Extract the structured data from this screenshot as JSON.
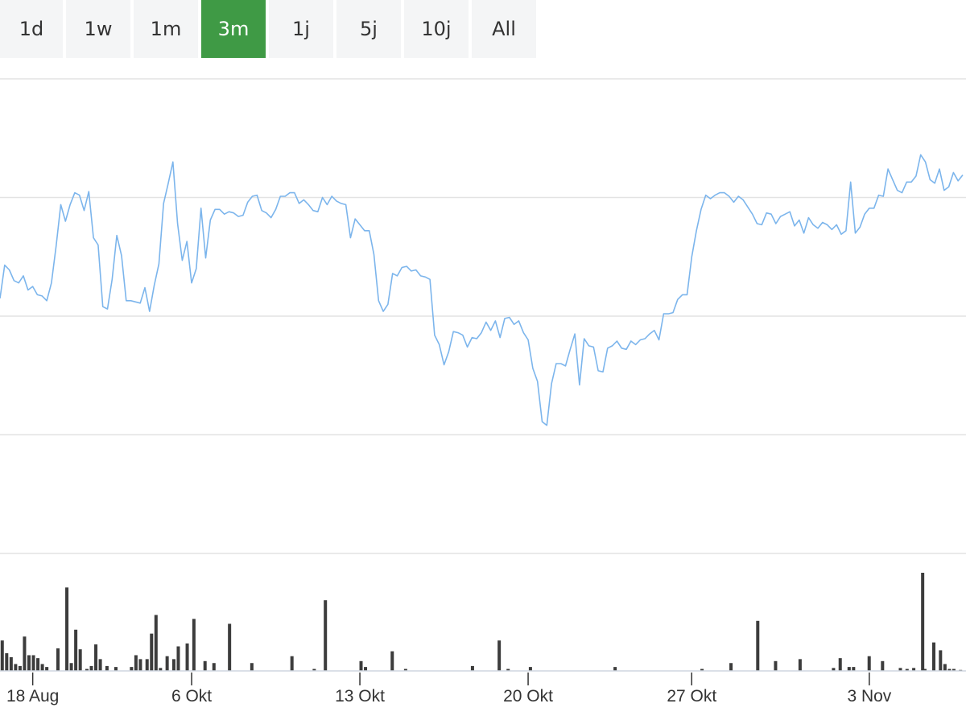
{
  "range_selector": {
    "buttons": [
      {
        "label": "1d"
      },
      {
        "label": "1w"
      },
      {
        "label": "1m"
      },
      {
        "label": "3m"
      },
      {
        "label": "1j"
      },
      {
        "label": "5j"
      },
      {
        "label": "10j"
      },
      {
        "label": "All"
      }
    ],
    "active": "3m",
    "active_color": "#3f9a45"
  },
  "chart_data": {
    "type": "line",
    "price_color": "#7cb5ec",
    "volume_color": "#3c3c3c",
    "y_ticks": [
      0,
      1,
      2,
      3,
      4
    ],
    "ylim": [
      0,
      4
    ],
    "volume_ylim": [
      0,
      1
    ],
    "x_ticks": [
      {
        "label": "18 Aug",
        "x": 1.4
      },
      {
        "label": "6 Okt",
        "x": 8.2
      },
      {
        "label": "13 Okt",
        "x": 15.4
      },
      {
        "label": "20 Okt",
        "x": 22.6
      },
      {
        "label": "27 Okt",
        "x": 29.6
      },
      {
        "label": "3 Nov",
        "x": 37.2
      }
    ],
    "xlim": [
      0,
      41.2
    ],
    "price": [
      [
        0,
        2.15
      ],
      [
        0.2,
        2.43
      ],
      [
        0.4,
        2.39
      ],
      [
        0.6,
        2.3
      ],
      [
        0.8,
        2.28
      ],
      [
        1.0,
        2.34
      ],
      [
        1.2,
        2.22
      ],
      [
        1.4,
        2.25
      ],
      [
        1.6,
        2.18
      ],
      [
        1.8,
        2.17
      ],
      [
        2.0,
        2.13
      ],
      [
        2.2,
        2.28
      ],
      [
        2.4,
        2.59
      ],
      [
        2.6,
        2.94
      ],
      [
        2.8,
        2.8
      ],
      [
        3.0,
        2.94
      ],
      [
        3.2,
        3.04
      ],
      [
        3.4,
        3.02
      ],
      [
        3.6,
        2.89
      ],
      [
        3.8,
        3.05
      ],
      [
        4.0,
        2.66
      ],
      [
        4.2,
        2.6
      ],
      [
        4.4,
        2.08
      ],
      [
        4.6,
        2.06
      ],
      [
        4.8,
        2.31
      ],
      [
        5.0,
        2.68
      ],
      [
        5.2,
        2.51
      ],
      [
        5.4,
        2.13
      ],
      [
        5.6,
        2.13
      ],
      [
        5.8,
        2.12
      ],
      [
        6.0,
        2.11
      ],
      [
        6.2,
        2.24
      ],
      [
        6.4,
        2.04
      ],
      [
        6.6,
        2.26
      ],
      [
        6.8,
        2.44
      ],
      [
        7.0,
        2.95
      ],
      [
        7.2,
        3.12
      ],
      [
        7.4,
        3.3
      ],
      [
        7.6,
        2.78
      ],
      [
        7.8,
        2.47
      ],
      [
        8.0,
        2.63
      ],
      [
        8.2,
        2.28
      ],
      [
        8.4,
        2.4
      ],
      [
        8.6,
        2.91
      ],
      [
        8.8,
        2.49
      ],
      [
        9.0,
        2.81
      ],
      [
        9.2,
        2.9
      ],
      [
        9.4,
        2.9
      ],
      [
        9.6,
        2.86
      ],
      [
        9.8,
        2.88
      ],
      [
        10.0,
        2.87
      ],
      [
        10.2,
        2.84
      ],
      [
        10.4,
        2.85
      ],
      [
        10.6,
        2.96
      ],
      [
        10.8,
        3.01
      ],
      [
        11.0,
        3.02
      ],
      [
        11.2,
        2.89
      ],
      [
        11.4,
        2.87
      ],
      [
        11.6,
        2.83
      ],
      [
        11.8,
        2.9
      ],
      [
        12.0,
        3.01
      ],
      [
        12.2,
        3.01
      ],
      [
        12.4,
        3.04
      ],
      [
        12.6,
        3.04
      ],
      [
        12.8,
        2.95
      ],
      [
        13.0,
        2.98
      ],
      [
        13.2,
        2.94
      ],
      [
        13.4,
        2.89
      ],
      [
        13.6,
        2.88
      ],
      [
        13.8,
        3.0
      ],
      [
        14.0,
        2.94
      ],
      [
        14.2,
        3.01
      ],
      [
        14.4,
        2.97
      ],
      [
        14.6,
        2.95
      ],
      [
        14.8,
        2.94
      ],
      [
        15.0,
        2.66
      ],
      [
        15.2,
        2.82
      ],
      [
        15.4,
        2.77
      ],
      [
        15.6,
        2.72
      ],
      [
        15.8,
        2.72
      ],
      [
        16.0,
        2.52
      ],
      [
        16.2,
        2.13
      ],
      [
        16.4,
        2.04
      ],
      [
        16.6,
        2.1
      ],
      [
        16.8,
        2.36
      ],
      [
        17.0,
        2.34
      ],
      [
        17.2,
        2.41
      ],
      [
        17.4,
        2.42
      ],
      [
        17.6,
        2.38
      ],
      [
        17.8,
        2.39
      ],
      [
        18.0,
        2.34
      ],
      [
        18.2,
        2.33
      ],
      [
        18.4,
        2.31
      ],
      [
        18.6,
        1.84
      ],
      [
        18.8,
        1.76
      ],
      [
        19.0,
        1.59
      ],
      [
        19.2,
        1.7
      ],
      [
        19.4,
        1.87
      ],
      [
        19.6,
        1.86
      ],
      [
        19.8,
        1.84
      ],
      [
        20.0,
        1.74
      ],
      [
        20.2,
        1.82
      ],
      [
        20.4,
        1.81
      ],
      [
        20.6,
        1.86
      ],
      [
        20.8,
        1.95
      ],
      [
        21.0,
        1.88
      ],
      [
        21.2,
        1.96
      ],
      [
        21.4,
        1.82
      ],
      [
        21.6,
        1.98
      ],
      [
        21.8,
        1.99
      ],
      [
        22.0,
        1.93
      ],
      [
        22.2,
        1.96
      ],
      [
        22.4,
        1.86
      ],
      [
        22.6,
        1.8
      ],
      [
        22.8,
        1.56
      ],
      [
        23.0,
        1.45
      ],
      [
        23.2,
        1.11
      ],
      [
        23.4,
        1.08
      ],
      [
        23.6,
        1.43
      ],
      [
        23.8,
        1.6
      ],
      [
        24.0,
        1.6
      ],
      [
        24.2,
        1.58
      ],
      [
        24.4,
        1.72
      ],
      [
        24.6,
        1.85
      ],
      [
        24.8,
        1.42
      ],
      [
        25.0,
        1.81
      ],
      [
        25.2,
        1.75
      ],
      [
        25.4,
        1.74
      ],
      [
        25.6,
        1.54
      ],
      [
        25.8,
        1.53
      ],
      [
        26.0,
        1.73
      ],
      [
        26.2,
        1.75
      ],
      [
        26.4,
        1.79
      ],
      [
        26.6,
        1.73
      ],
      [
        26.8,
        1.72
      ],
      [
        27.0,
        1.79
      ],
      [
        27.2,
        1.76
      ],
      [
        27.4,
        1.8
      ],
      [
        27.6,
        1.81
      ],
      [
        27.8,
        1.85
      ],
      [
        28.0,
        1.88
      ],
      [
        28.2,
        1.8
      ],
      [
        28.4,
        2.02
      ],
      [
        28.6,
        2.02
      ],
      [
        28.8,
        2.03
      ],
      [
        29.0,
        2.14
      ],
      [
        29.2,
        2.18
      ],
      [
        29.4,
        2.18
      ],
      [
        29.6,
        2.5
      ],
      [
        29.8,
        2.72
      ],
      [
        30.0,
        2.9
      ],
      [
        30.2,
        3.02
      ],
      [
        30.4,
        2.99
      ],
      [
        30.6,
        3.02
      ],
      [
        30.8,
        3.04
      ],
      [
        31.0,
        3.04
      ],
      [
        31.2,
        3.01
      ],
      [
        31.4,
        2.96
      ],
      [
        31.6,
        3.01
      ],
      [
        31.8,
        2.98
      ],
      [
        32.0,
        2.92
      ],
      [
        32.2,
        2.86
      ],
      [
        32.4,
        2.78
      ],
      [
        32.6,
        2.77
      ],
      [
        32.8,
        2.87
      ],
      [
        33.0,
        2.86
      ],
      [
        33.2,
        2.78
      ],
      [
        33.4,
        2.84
      ],
      [
        33.6,
        2.86
      ],
      [
        33.8,
        2.88
      ],
      [
        34.0,
        2.76
      ],
      [
        34.2,
        2.81
      ],
      [
        34.4,
        2.7
      ],
      [
        34.6,
        2.83
      ],
      [
        34.8,
        2.77
      ],
      [
        35.0,
        2.74
      ],
      [
        35.2,
        2.79
      ],
      [
        35.4,
        2.77
      ],
      [
        35.6,
        2.73
      ],
      [
        35.8,
        2.77
      ],
      [
        36.0,
        2.69
      ],
      [
        36.2,
        2.72
      ],
      [
        36.4,
        3.13
      ],
      [
        36.6,
        2.7
      ],
      [
        36.8,
        2.75
      ],
      [
        37.0,
        2.86
      ],
      [
        37.2,
        2.91
      ],
      [
        37.4,
        2.91
      ],
      [
        37.6,
        3.02
      ],
      [
        37.8,
        3.01
      ],
      [
        38.0,
        3.24
      ],
      [
        38.2,
        3.15
      ],
      [
        38.4,
        3.06
      ],
      [
        38.6,
        3.04
      ],
      [
        38.8,
        3.13
      ],
      [
        39.0,
        3.13
      ],
      [
        39.2,
        3.18
      ],
      [
        39.4,
        3.36
      ],
      [
        39.6,
        3.3
      ],
      [
        39.8,
        3.15
      ],
      [
        40.0,
        3.12
      ],
      [
        40.2,
        3.24
      ],
      [
        40.4,
        3.06
      ],
      [
        40.6,
        3.09
      ],
      [
        40.8,
        3.21
      ],
      [
        41.0,
        3.14
      ],
      [
        41.2,
        3.19
      ]
    ],
    "volume": [
      [
        0.1,
        0.31
      ],
      [
        0.3,
        0.18
      ],
      [
        0.5,
        0.14
      ],
      [
        0.7,
        0.07
      ],
      [
        0.9,
        0.05
      ],
      [
        1.1,
        0.35
      ],
      [
        1.3,
        0.16
      ],
      [
        1.5,
        0.16
      ],
      [
        1.7,
        0.13
      ],
      [
        1.9,
        0.07
      ],
      [
        2.1,
        0.04
      ],
      [
        2.6,
        0.23
      ],
      [
        3.0,
        0.85
      ],
      [
        3.2,
        0.08
      ],
      [
        3.4,
        0.42
      ],
      [
        3.6,
        0.22
      ],
      [
        3.9,
        0.02
      ],
      [
        4.1,
        0.05
      ],
      [
        4.3,
        0.27
      ],
      [
        4.5,
        0.12
      ],
      [
        4.8,
        0.05
      ],
      [
        5.2,
        0.04
      ],
      [
        5.9,
        0.04
      ],
      [
        6.1,
        0.16
      ],
      [
        6.3,
        0.12
      ],
      [
        6.6,
        0.12
      ],
      [
        6.8,
        0.38
      ],
      [
        7.0,
        0.57
      ],
      [
        7.2,
        0.03
      ],
      [
        7.5,
        0.15
      ],
      [
        7.8,
        0.12
      ],
      [
        8.0,
        0.25
      ],
      [
        8.4,
        0.28
      ],
      [
        8.7,
        0.53
      ],
      [
        9.2,
        0.1
      ],
      [
        9.6,
        0.08
      ],
      [
        10.3,
        0.48
      ],
      [
        11.3,
        0.08
      ],
      [
        13.1,
        0.15
      ],
      [
        14.1,
        0.02
      ],
      [
        14.6,
        0.72
      ],
      [
        16.2,
        0.1
      ],
      [
        16.4,
        0.04
      ],
      [
        17.6,
        0.2
      ],
      [
        18.2,
        0.02
      ],
      [
        21.2,
        0.05
      ],
      [
        22.4,
        0.31
      ],
      [
        22.8,
        0.02
      ],
      [
        23.8,
        0.04
      ],
      [
        27.6,
        0.04
      ],
      [
        31.5,
        0.02
      ],
      [
        32.8,
        0.08
      ],
      [
        34.0,
        0.51
      ],
      [
        34.8,
        0.1
      ],
      [
        35.9,
        0.12
      ],
      [
        37.4,
        0.03
      ],
      [
        37.7,
        0.13
      ],
      [
        38.1,
        0.04
      ],
      [
        38.3,
        0.04
      ],
      [
        39.0,
        0.15
      ],
      [
        39.6,
        0.1
      ],
      [
        40.4,
        0.03
      ],
      [
        40.7,
        0.02
      ],
      [
        41.0,
        0.03
      ],
      [
        41.4,
        1.0
      ],
      [
        41.5,
        0.02
      ],
      [
        41.9,
        0.29
      ],
      [
        42.2,
        0.21
      ],
      [
        42.4,
        0.07
      ],
      [
        42.6,
        0.02
      ],
      [
        42.8,
        0.02
      ],
      [
        43.1,
        0.01
      ]
    ]
  }
}
